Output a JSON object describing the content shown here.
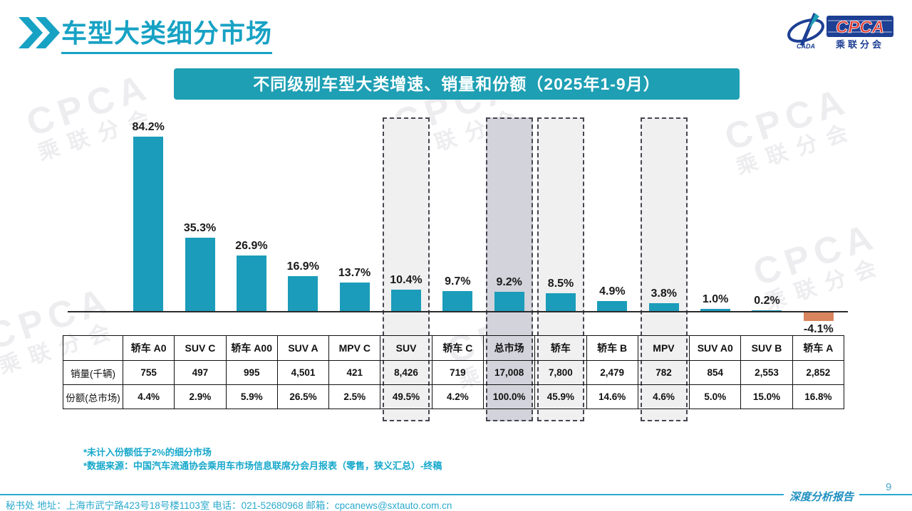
{
  "page": {
    "title": "车型大类细分市场",
    "page_number": "9",
    "report_label": "深度分析报告",
    "footer": "秘书处  地址：上海市武宁路423号18号楼1103室 电话：021-52680968  邮箱：cpcanews@sxtauto.com.cn"
  },
  "logo": {
    "brand": "CPCA",
    "sub_brand": "乘联分会",
    "icon_label": "CADA"
  },
  "watermark": {
    "line1": "CPCA",
    "line2": "乘联分会"
  },
  "footnotes": {
    "note1": "*未计入份额低于2%的细分市场",
    "note2": "*数据来源：中国汽车流通协会乘用车市场信息联席分会月报表（零售，狭义汇总）-终稿"
  },
  "chart_data": {
    "type": "bar",
    "title": "不同级别车型大类增速、销量和份额（2025年1-9月）",
    "categories": [
      "轿车 A0",
      "SUV C",
      "轿车 A00",
      "SUV A",
      "MPV C",
      "SUV",
      "轿车 C",
      "总市场",
      "轿车",
      "轿车 B",
      "MPV",
      "SUV A0",
      "SUV B",
      "轿车 A"
    ],
    "growth_pct": [
      84.2,
      35.3,
      26.9,
      16.9,
      13.7,
      10.4,
      9.7,
      9.2,
      8.5,
      4.9,
      3.8,
      1.0,
      0.2,
      -4.1
    ],
    "growth_labels": [
      "84.2%",
      "35.3%",
      "26.9%",
      "16.9%",
      "13.7%",
      "10.4%",
      "9.7%",
      "9.2%",
      "8.5%",
      "4.9%",
      "3.8%",
      "1.0%",
      "0.2%",
      "-4.1%"
    ],
    "highlighted_categories": [
      "SUV",
      "总市场",
      "轿车",
      "MPV"
    ],
    "highlighted_indexes": [
      5,
      7,
      8,
      10
    ],
    "dark_highlight_index": 7,
    "bar_color": "#1B9CBA",
    "negative_bar_color": "#D8845C",
    "ylim": [
      -5,
      90
    ],
    "grid": false,
    "table": {
      "row_labels": {
        "sales": "销量(千辆)",
        "share": "份额(总市场)"
      },
      "sales_thousand": [
        "755",
        "497",
        "995",
        "4,501",
        "421",
        "8,426",
        "719",
        "17,008",
        "7,800",
        "2,479",
        "782",
        "854",
        "2,553",
        "2,852"
      ],
      "share_total": [
        "4.4%",
        "2.9%",
        "5.9%",
        "26.5%",
        "2.5%",
        "49.5%",
        "4.2%",
        "100.0%",
        "45.9%",
        "14.6%",
        "4.6%",
        "5.0%",
        "15.0%",
        "16.8%"
      ]
    }
  }
}
